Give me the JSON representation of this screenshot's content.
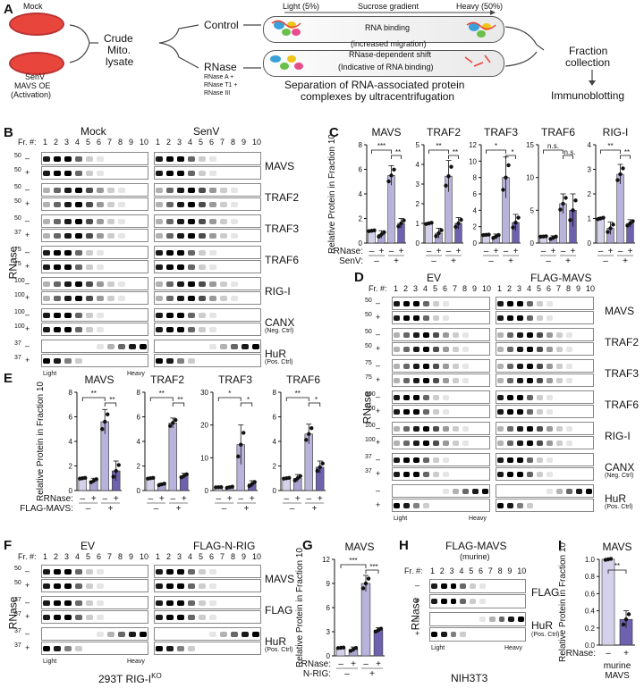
{
  "panels": {
    "A": "A",
    "B": "B",
    "C": "C",
    "D": "D",
    "E": "E",
    "F": "F",
    "G": "G",
    "H": "H",
    "I": "I"
  },
  "schematic": {
    "mock": "Mock",
    "senv": "SenV",
    "mavs_oe": "MAVS OE",
    "activation": "(Activation)",
    "crude": "Crude",
    "mito": "Mito.",
    "lysate": "lysate",
    "control": "Control",
    "rnase": "RNase",
    "rnase_list": [
      "RNase A +",
      "RNase T1 +",
      "RNase III"
    ],
    "light": "Light (5%)",
    "gradient": "Sucrose gradient",
    "heavy": "Heavy (50%)",
    "rna_binding": "RNA binding",
    "increased_migration": "(increased migration)",
    "rnase_shift": "RNase-dependent shift",
    "indicative": "(Indicative of RNA binding)",
    "separation_1": "Separation of RNA-associated protein",
    "separation_2": "complexes by ultracentrifugation",
    "fraction": "Fraction",
    "collection": "collection",
    "immunoblotting": "Immunoblotting"
  },
  "blots": {
    "fr": "Fr. #:",
    "fractions": [
      "1",
      "2",
      "3",
      "4",
      "5",
      "6",
      "7",
      "8",
      "9",
      "10"
    ],
    "rnase": "RNase",
    "minus": "–",
    "plus": "+",
    "light": "Light",
    "heavy": "Heavy",
    "neg": "(Neg. Ctrl)",
    "pos": "(Pos. Ctrl)",
    "B": {
      "groups": [
        "Mock",
        "SenV"
      ],
      "rows": [
        "MAVS",
        "TRAF2",
        "TRAF3",
        "TRAF6",
        "RIG-I",
        "CANX",
        "HuR"
      ],
      "markers": [
        "50",
        "50",
        "50",
        "50",
        "50",
        "37",
        "75",
        "75",
        "100",
        "100",
        "100",
        "100",
        "37",
        "37"
      ]
    },
    "D": {
      "groups": [
        "EV",
        "FLAG-MAVS"
      ],
      "rows": [
        "MAVS",
        "TRAF2",
        "TRAF3",
        "TRAF6",
        "RIG-I",
        "CANX",
        "HuR"
      ],
      "markers": [
        "50",
        "50",
        "50",
        "50",
        "75",
        "75",
        "100",
        "100",
        "100",
        "100",
        "37",
        "37"
      ]
    },
    "F": {
      "groups": [
        "EV",
        "FLAG-N-RIG"
      ],
      "rows": [
        "MAVS",
        "FLAG",
        "HuR"
      ],
      "markers": [
        "50",
        "50",
        "37",
        "37",
        "37",
        "37"
      ],
      "caption": "293T RIG-I",
      "caption_sup": "KO"
    },
    "H": {
      "group": "FLAG-MAVS",
      "group_sub": "(murine)",
      "rows": [
        "FLAG",
        "HuR"
      ],
      "caption": "NIH3T3"
    }
  },
  "chart_data": [
    {
      "panel": "C",
      "type": "bar",
      "ylabel": "Relative Protein in Fraction 10",
      "row_labels": [
        "RNase:",
        "SenV:"
      ],
      "conditions": [
        "RNase –/SenV –",
        "RNase +/SenV –",
        "RNase –/SenV +",
        "RNase +/SenV +"
      ],
      "charts": [
        {
          "title": "MAVS",
          "ylim": [
            0,
            8
          ],
          "yticks": [
            "0",
            "2",
            "4",
            "6",
            "8"
          ],
          "values": [
            1.0,
            0.7,
            5.5,
            1.6
          ],
          "errors": [
            0.05,
            0.3,
            0.8,
            0.4
          ],
          "sig": [
            "***",
            "**"
          ]
        },
        {
          "title": "TRAF2",
          "ylim": [
            0,
            5
          ],
          "yticks": [
            "0",
            "1",
            "2",
            "3",
            "4",
            "5"
          ],
          "values": [
            1.0,
            0.5,
            3.4,
            1.0
          ],
          "errors": [
            0.05,
            0.25,
            0.8,
            0.3
          ],
          "sig": [
            "**",
            "**"
          ]
        },
        {
          "title": "TRAF3",
          "ylim": [
            0,
            12
          ],
          "yticks": [
            "0",
            "2",
            "4",
            "6",
            "8",
            "10",
            "12"
          ],
          "values": [
            1.0,
            0.8,
            8.0,
            2.5
          ],
          "errors": [
            0.05,
            0.3,
            2.5,
            1.0
          ],
          "sig": [
            "*",
            "*"
          ]
        },
        {
          "title": "TRAF6",
          "ylim": [
            0,
            15
          ],
          "yticks": [
            "0",
            "5",
            "10",
            "15"
          ],
          "values": [
            1.0,
            0.8,
            6.0,
            5.0
          ],
          "errors": [
            0.05,
            0.3,
            1.5,
            2.5
          ],
          "sig": [
            "n.s.",
            "n.s."
          ]
        },
        {
          "title": "RIG-I",
          "ylim": [
            0,
            4
          ],
          "yticks": [
            "0",
            "1",
            "2",
            "3",
            "4"
          ],
          "values": [
            1.0,
            0.6,
            2.8,
            0.8
          ],
          "errors": [
            0.05,
            0.25,
            0.4,
            0.15
          ],
          "sig": [
            "**",
            "**"
          ]
        }
      ]
    },
    {
      "panel": "E",
      "type": "bar",
      "ylabel": "Relative Protein in Fraction 10",
      "row_labels": [
        "RNase:",
        "FLAG-MAVS:"
      ],
      "conditions": [
        "RNase –/FLAG-MAVS –",
        "RNase +/FLAG-MAVS –",
        "RNase –/FLAG-MAVS +",
        "RNase +/FLAG-MAVS +"
      ],
      "charts": [
        {
          "title": "MAVS",
          "ylim": [
            0,
            8
          ],
          "yticks": [
            "0",
            "2",
            "4",
            "6",
            "8"
          ],
          "values": [
            1.0,
            0.8,
            5.6,
            1.6
          ],
          "errors": [
            0.05,
            0.2,
            1.0,
            0.8
          ],
          "sig": [
            "**",
            "**"
          ]
        },
        {
          "title": "TRAF2",
          "ylim": [
            0,
            8
          ],
          "yticks": [
            "0",
            "2",
            "4",
            "6",
            "8"
          ],
          "values": [
            1.0,
            0.5,
            5.5,
            1.2
          ],
          "errors": [
            0.05,
            0.1,
            0.4,
            0.2
          ],
          "sig": [
            "**",
            "**"
          ]
        },
        {
          "title": "TRAF3",
          "ylim": [
            0,
            30
          ],
          "yticks": [
            "0",
            "10",
            "20",
            "30"
          ],
          "values": [
            1.0,
            1.0,
            14.0,
            2.0
          ],
          "errors": [
            0.05,
            0.3,
            6.0,
            1.0
          ],
          "sig": [
            "*",
            "*"
          ]
        },
        {
          "title": "TRAF6",
          "ylim": [
            0,
            8
          ],
          "yticks": [
            "0",
            "2",
            "4",
            "6",
            "8"
          ],
          "values": [
            1.0,
            1.0,
            4.6,
            1.9
          ],
          "errors": [
            0.05,
            0.3,
            0.8,
            0.5
          ],
          "sig": [
            "**",
            "*"
          ]
        }
      ]
    },
    {
      "panel": "G",
      "type": "bar",
      "ylabel": "Relative Protein in Fraction 10",
      "row_labels": [
        "RNase:",
        "N-RIG:"
      ],
      "conditions": [
        "RNase –/N-RIG –",
        "RNase +/N-RIG –",
        "RNase –/N-RIG +",
        "RNase +/N-RIG +"
      ],
      "charts": [
        {
          "title": "MAVS",
          "ylim": [
            0,
            12
          ],
          "yticks": [
            "0",
            "3",
            "6",
            "9",
            "12"
          ],
          "values": [
            1.0,
            0.8,
            9.0,
            3.2
          ],
          "errors": [
            0.05,
            0.3,
            1.0,
            0.3
          ],
          "sig": [
            "***",
            "***"
          ]
        }
      ]
    },
    {
      "panel": "I",
      "type": "bar",
      "ylabel": "Relative Protein in Fraction 10",
      "row_labels": [
        "RNase:"
      ],
      "group_label": [
        "murine",
        "MAVS"
      ],
      "conditions": [
        "RNase –",
        "RNase +"
      ],
      "charts": [
        {
          "title": "MAVS",
          "ylim": [
            0,
            1.0
          ],
          "yticks": [
            "0.0",
            "0.2",
            "0.4",
            "0.6",
            "0.8",
            "1.0"
          ],
          "values": [
            1.0,
            0.3
          ],
          "errors": [
            0.01,
            0.1
          ],
          "sig": [
            "**"
          ]
        }
      ]
    }
  ],
  "colors": {
    "bar_neg": "#d4d1ea",
    "bar_neg_rnase": "#aba4d2",
    "bar_pos": "#b7b3db",
    "bar_pos_rnase": "#6e61ad",
    "dish": "#e8453c",
    "arrow": "#444444"
  }
}
